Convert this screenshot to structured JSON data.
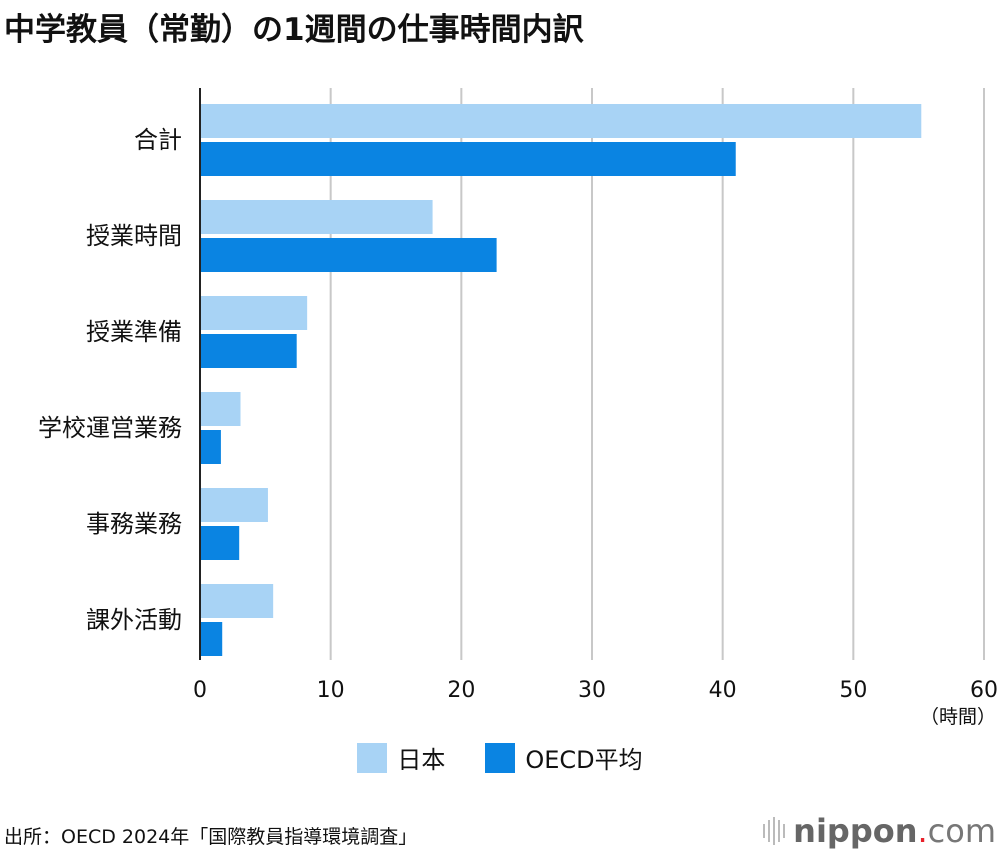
{
  "title": "中学教員（常勤）の1週間の仕事時間内訳",
  "source": "出所：OECD 2024年「国際教員指導環境調査」",
  "logo": "nippon.com",
  "chart_data": {
    "type": "bar",
    "orientation": "horizontal",
    "categories": [
      "合計",
      "授業時間",
      "授業準備",
      "学校運営業務",
      "事務業務",
      "課外活動"
    ],
    "series": [
      {
        "name": "日本",
        "color": "#a8d3f5",
        "values": [
          55.2,
          17.8,
          8.2,
          3.1,
          5.2,
          5.6
        ]
      },
      {
        "name": "OECD平均",
        "color": "#0a84e2",
        "values": [
          41.0,
          22.7,
          7.4,
          1.6,
          3.0,
          1.7
        ]
      }
    ],
    "xlim": [
      0,
      60
    ],
    "xticks": [
      0,
      10,
      20,
      30,
      40,
      50,
      60
    ],
    "xunit": "（時間）",
    "grid": true,
    "legend": "bottom"
  }
}
